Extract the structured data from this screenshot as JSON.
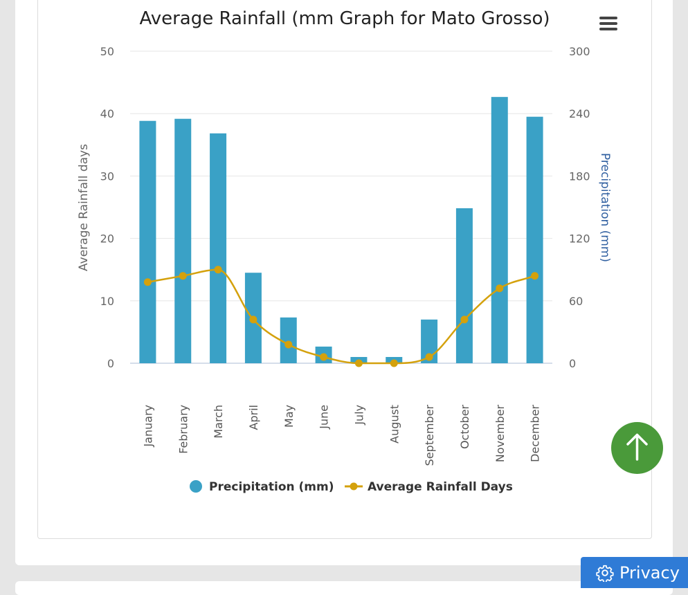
{
  "chart_data": {
    "type": "bar+line",
    "title": "Average Rainfall (mm Graph for Mato Grosso)",
    "categories": [
      "January",
      "February",
      "March",
      "April",
      "May",
      "June",
      "July",
      "August",
      "September",
      "October",
      "November",
      "December"
    ],
    "series": [
      {
        "name": "Precipitation (mm)",
        "type": "bar",
        "axis": "right",
        "color": "#3aa1c6",
        "values": [
          233,
          235,
          221,
          87,
          44,
          16,
          6,
          6,
          42,
          149,
          256,
          237
        ]
      },
      {
        "name": "Average Rainfall Days",
        "type": "line",
        "axis": "left",
        "color": "#d4a10c",
        "values": [
          13,
          14,
          15,
          7,
          3,
          1,
          0,
          0,
          1,
          7,
          12,
          14
        ]
      }
    ],
    "y_left": {
      "label": "Average Rainfall days",
      "min": 0,
      "max": 50,
      "ticks": [
        0,
        10,
        20,
        30,
        40,
        50
      ]
    },
    "y_right": {
      "label": "Precipitation (mm)",
      "min": 0,
      "max": 300,
      "ticks": [
        0,
        60,
        120,
        180,
        240,
        300
      ],
      "label_color": "#2f5fa0"
    },
    "grid": true,
    "legend_position": "bottom"
  },
  "privacy": {
    "label": "Privacy"
  },
  "icons": {
    "menu": "hamburger-menu-icon",
    "scroll_top": "arrow-up-icon",
    "privacy": "gear-icon"
  },
  "colors": {
    "scroll_top_bg": "#4a9a3a",
    "privacy_bg": "#2f7bd6"
  }
}
